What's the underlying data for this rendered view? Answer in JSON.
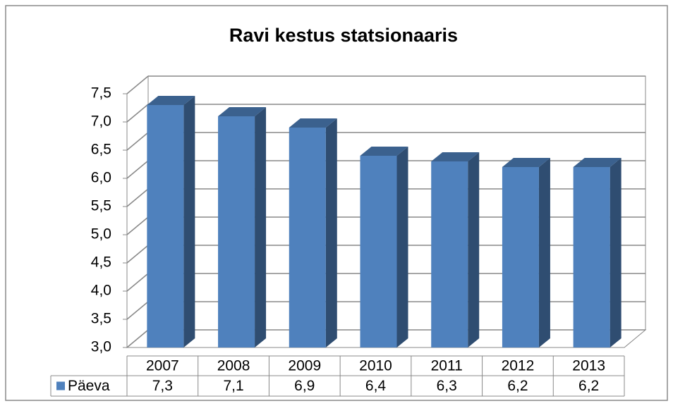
{
  "chart_data": {
    "type": "bar3d",
    "title": "Ravi kestus statsionaaris",
    "categories": [
      "2007",
      "2008",
      "2009",
      "2010",
      "2011",
      "2012",
      "2013"
    ],
    "series": [
      {
        "name": "Päeva",
        "color": "#4f81bd",
        "values": [
          7.3,
          7.1,
          6.9,
          6.4,
          6.3,
          6.2,
          6.2
        ],
        "value_labels": [
          "7,3",
          "7,1",
          "6,9",
          "6,4",
          "6,3",
          "6,2",
          "6,2"
        ]
      }
    ],
    "ylim": [
      3,
      7.5
    ],
    "yticks": [
      {
        "value": 3,
        "label": "3,0"
      },
      {
        "value": 3.5,
        "label": "3,5"
      },
      {
        "value": 4,
        "label": "4,0"
      },
      {
        "value": 4.5,
        "label": "4,5"
      },
      {
        "value": 5,
        "label": "5,0"
      },
      {
        "value": 5.5,
        "label": "5,5"
      },
      {
        "value": 6,
        "label": "6,0"
      },
      {
        "value": 6.5,
        "label": "6,5"
      },
      {
        "value": 7,
        "label": "7,0"
      },
      {
        "value": 7.5,
        "label": "7,5"
      }
    ],
    "grid": true,
    "legend": "table"
  }
}
